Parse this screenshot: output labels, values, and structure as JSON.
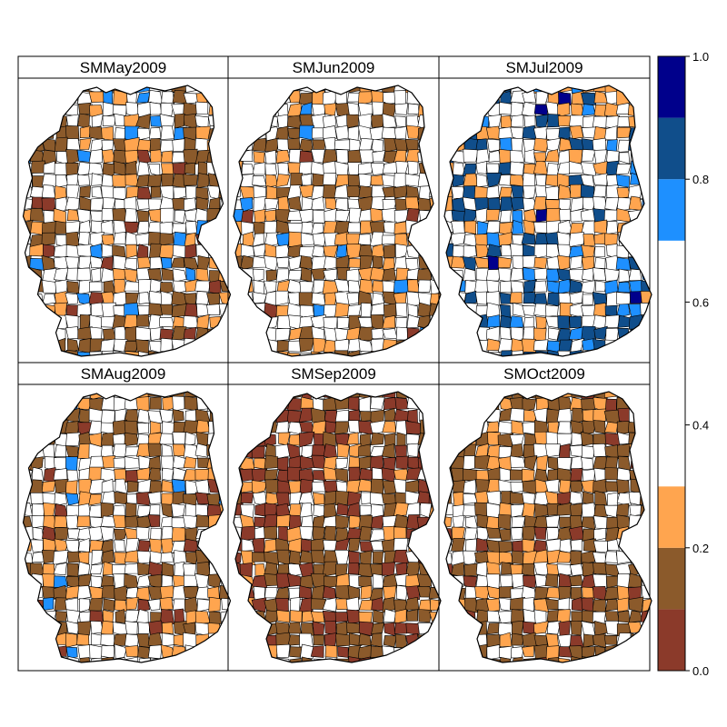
{
  "panels": [
    {
      "title": "SMMay2009"
    },
    {
      "title": "SMJun2009"
    },
    {
      "title": "SMJul2009"
    },
    {
      "title": "SMAug2009"
    },
    {
      "title": "SMSep2009"
    },
    {
      "title": "SMOct2009"
    }
  ],
  "colorkey": {
    "bins": [
      {
        "from": 0.0,
        "to": 0.1,
        "color": "#8B3A2A"
      },
      {
        "from": 0.1,
        "to": 0.2,
        "color": "#8B5A2B"
      },
      {
        "from": 0.2,
        "to": 0.3,
        "color": "#FFA54F"
      },
      {
        "from": 0.3,
        "to": 0.7,
        "color": "#FFFFFF"
      },
      {
        "from": 0.7,
        "to": 0.8,
        "color": "#1E90FF"
      },
      {
        "from": 0.8,
        "to": 0.9,
        "color": "#104E8B"
      },
      {
        "from": 0.9,
        "to": 1.0,
        "color": "#00008B"
      }
    ],
    "ticks": [
      "0.0",
      "0.2",
      "0.4",
      "0.6",
      "0.8",
      "1.0"
    ],
    "range": [
      0.0,
      1.0
    ]
  },
  "panel_fill_shares": [
    {
      "dark_brown": 0.05,
      "brown": 0.25,
      "orange": 0.18,
      "white": 0.45,
      "light_blue": 0.05,
      "mid_blue": 0.0,
      "navy": 0.0
    },
    {
      "dark_brown": 0.02,
      "brown": 0.15,
      "orange": 0.22,
      "white": 0.58,
      "light_blue": 0.03,
      "mid_blue": 0.0,
      "navy": 0.0
    },
    {
      "dark_brown": 0.0,
      "brown": 0.0,
      "orange": 0.2,
      "white": 0.55,
      "light_blue": 0.07,
      "mid_blue": 0.15,
      "navy": 0.03
    },
    {
      "dark_brown": 0.06,
      "brown": 0.22,
      "orange": 0.2,
      "white": 0.51,
      "light_blue": 0.01,
      "mid_blue": 0.0,
      "navy": 0.0
    },
    {
      "dark_brown": 0.25,
      "brown": 0.35,
      "orange": 0.18,
      "white": 0.22,
      "light_blue": 0.0,
      "mid_blue": 0.0,
      "navy": 0.0
    },
    {
      "dark_brown": 0.08,
      "brown": 0.38,
      "orange": 0.22,
      "white": 0.32,
      "light_blue": 0.0,
      "mid_blue": 0.0,
      "navy": 0.0
    }
  ]
}
